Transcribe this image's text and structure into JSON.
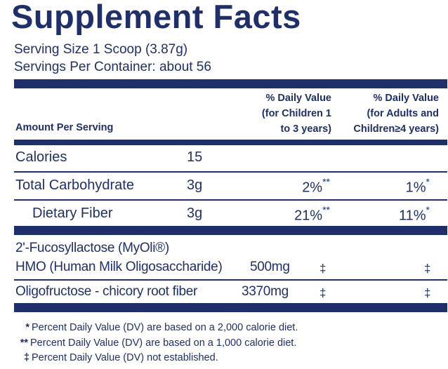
{
  "title": "Supplement Facts",
  "serving_size": "Serving Size 1 Scoop (3.87g)",
  "servings_per_container": "Servings Per Container: about 56",
  "header": {
    "amount_per_serving": "Amount Per Serving",
    "dv_children_line1": "% Daily Value",
    "dv_children_line2": "(for Children 1",
    "dv_children_line3": "to 3 years)",
    "dv_adults_line1": "% Daily Value",
    "dv_adults_line2": "(for Adults and",
    "dv_adults_line3": "Children≥4 years)"
  },
  "nutrients": [
    {
      "name": "Calories",
      "amount": "15",
      "dv_children": "",
      "dv_children_mark": "",
      "dv_adults": "",
      "dv_adults_mark": ""
    },
    {
      "name": "Total Carbohydrate",
      "amount": "3g",
      "dv_children": "2%",
      "dv_children_mark": "**",
      "dv_adults": "1%",
      "dv_adults_mark": "*"
    },
    {
      "name": "Dietary Fiber",
      "amount": "3g",
      "dv_children": "21%",
      "dv_children_mark": "**",
      "dv_adults": "11%",
      "dv_adults_mark": "*"
    }
  ],
  "other_ingredients": [
    {
      "name_line1": "2'-Fucosyllactose (MyOli®)",
      "name_line2": "HMO (Human Milk Oligosaccharide)",
      "amount": "500mg",
      "dv_children": "‡",
      "dv_adults": "‡"
    },
    {
      "name": "Oligofructose - chicory root fiber",
      "amount": "3370mg",
      "dv_children": "‡",
      "dv_adults": "‡"
    }
  ],
  "footnotes": [
    {
      "mark": "*",
      "text": "Percent Daily Value (DV) are based on a 2,000 calorie diet."
    },
    {
      "mark": "**",
      "text": "Percent Daily Value (DV) are based on a 1,000 calorie diet."
    },
    {
      "mark": "‡",
      "text": "Percent Daily Value (DV) not established."
    }
  ],
  "colors": {
    "ink": "#1f2f6b",
    "background": "#ffffff"
  }
}
